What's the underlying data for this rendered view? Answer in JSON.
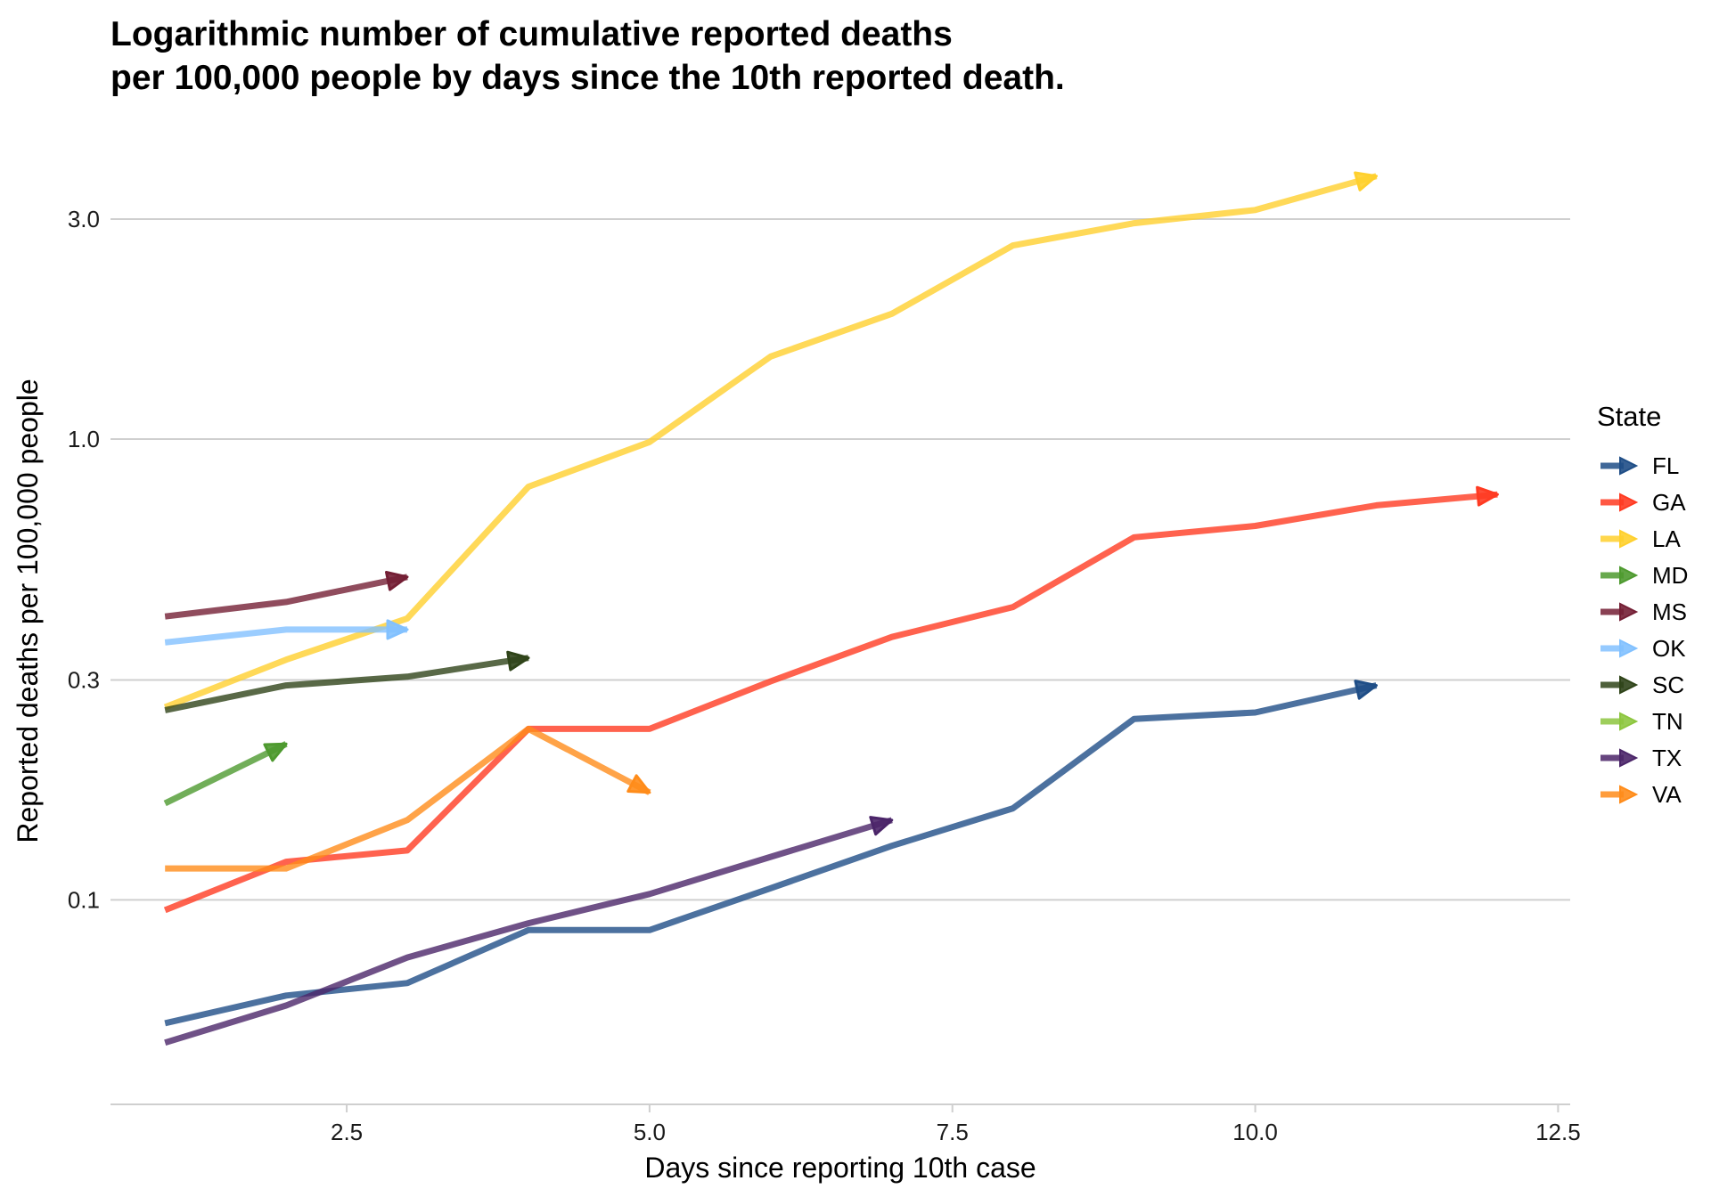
{
  "chart_data": {
    "type": "line",
    "title_lines": [
      "Logarithmic number of cumulative reported deaths",
      "per 100,000 people by days since the 10th reported death."
    ],
    "xlabel": "Days since reporting 10th case",
    "ylabel": "Reported deaths per 100,000 people",
    "x_scale": "linear",
    "y_scale": "log",
    "xlim": [
      0.55,
      12.6
    ],
    "ylim": [
      0.036,
      4.6
    ],
    "x_ticks": [
      2.5,
      5.0,
      7.5,
      10.0,
      12.5
    ],
    "x_tick_labels": [
      "2.5",
      "5.0",
      "7.5",
      "10.0",
      "12.5"
    ],
    "y_ticks": [
      0.1,
      0.3,
      1.0,
      3.0
    ],
    "y_tick_labels": [
      "0.1",
      "0.3",
      "1.0",
      "3.0"
    ],
    "grid": "horizontal-major",
    "legend": {
      "title": "State",
      "position": "right"
    },
    "series": [
      {
        "name": "FL",
        "color": "#1f4e87",
        "x": [
          1,
          2,
          3,
          4,
          5,
          6,
          7,
          8,
          9,
          10,
          11
        ],
        "y": [
          0.054,
          0.062,
          0.066,
          0.086,
          0.086,
          0.106,
          0.131,
          0.158,
          0.247,
          0.255,
          0.292
        ]
      },
      {
        "name": "GA",
        "color": "#ff3b22",
        "x": [
          1,
          2,
          3,
          4,
          5,
          6,
          7,
          8,
          9,
          10,
          11,
          12
        ],
        "y": [
          0.095,
          0.121,
          0.128,
          0.235,
          0.235,
          0.298,
          0.372,
          0.432,
          0.612,
          0.648,
          0.718,
          0.758
        ]
      },
      {
        "name": "LA",
        "color": "#ffd02e",
        "x": [
          1,
          2,
          3,
          4,
          5,
          6,
          7,
          8,
          9,
          10,
          11
        ],
        "y": [
          0.262,
          0.332,
          0.408,
          0.788,
          0.985,
          1.51,
          1.87,
          2.63,
          2.94,
          3.14,
          3.72
        ]
      },
      {
        "name": "MD",
        "color": "#4e9a2f",
        "x": [
          1,
          2
        ],
        "y": [
          0.162,
          0.218
        ]
      },
      {
        "name": "MS",
        "color": "#741f35",
        "x": [
          1,
          2,
          3
        ],
        "y": [
          0.412,
          0.443,
          0.502
        ]
      },
      {
        "name": "OK",
        "color": "#82c1ff",
        "x": [
          1,
          2,
          3
        ],
        "y": [
          0.362,
          0.386,
          0.386
        ]
      },
      {
        "name": "SC",
        "color": "#2f4419",
        "x": [
          1,
          2,
          3,
          4
        ],
        "y": [
          0.258,
          0.292,
          0.305,
          0.335
        ]
      },
      {
        "name": "TN",
        "color": "#8dc63f",
        "x": [],
        "y": []
      },
      {
        "name": "TX",
        "color": "#4b2569",
        "x": [
          1,
          2,
          3,
          4,
          5,
          6,
          7
        ],
        "y": [
          0.049,
          0.059,
          0.075,
          0.089,
          0.103,
          0.124,
          0.149
        ]
      },
      {
        "name": "VA",
        "color": "#ff8c1a",
        "x": [
          1,
          2,
          3,
          4,
          5
        ],
        "y": [
          0.117,
          0.117,
          0.149,
          0.235,
          0.171
        ]
      }
    ]
  }
}
